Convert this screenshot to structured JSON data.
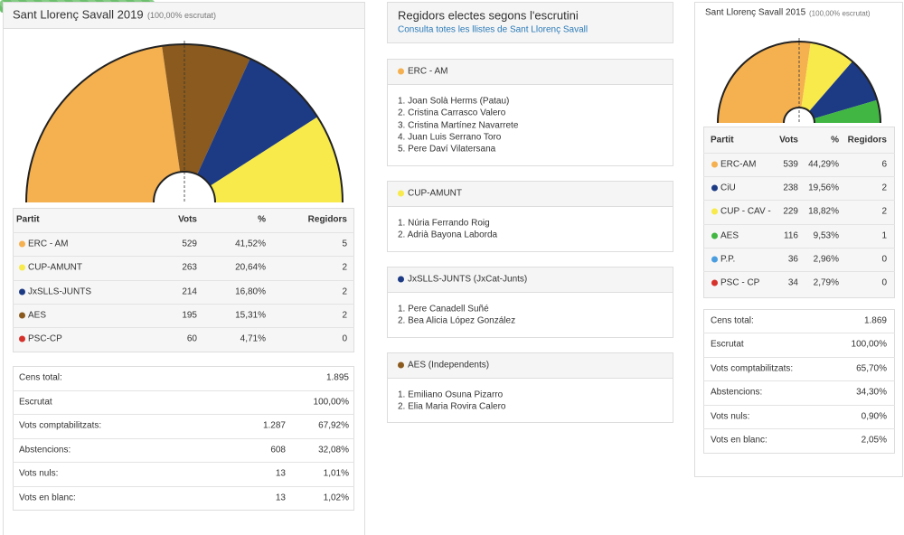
{
  "left": {
    "title": "Sant Llorenç Savall 2019",
    "status": "(100,00% escrutat)",
    "columns": [
      "Partit",
      "Vots",
      "%",
      "Regidors"
    ],
    "rows": [
      {
        "party": "ERC - AM",
        "color": "#f5b04f",
        "votes": 529,
        "share": "41,52%",
        "seats": 5
      },
      {
        "party": "CUP-AMUNT",
        "color": "#f7ea4a",
        "votes": 263,
        "share": "20,64%",
        "seats": 2
      },
      {
        "party": "JxSLLS-JUNTS",
        "color": "#1d3a84",
        "votes": 214,
        "share": "16,80%",
        "seats": 2
      },
      {
        "party": "AES",
        "color": "#8a5a1e",
        "votes": 195,
        "share": "15,31%",
        "seats": 2
      },
      {
        "party": "PSC-CP",
        "color": "#d6312b",
        "votes": 60,
        "share": "4,71%",
        "seats": 0
      }
    ],
    "summary": [
      {
        "label": "Cens total:",
        "values": [
          "1.895"
        ]
      },
      {
        "label": "Escrutat",
        "values": [
          "100,00%"
        ]
      },
      {
        "label": "Vots comptabilitzats:",
        "values": [
          "1.287",
          "67,92%"
        ]
      },
      {
        "label": "Abstencions:",
        "values": [
          "608",
          "32,08%"
        ]
      },
      {
        "label": "Vots nuls:",
        "values": [
          "13",
          "1,01%"
        ]
      },
      {
        "label": "Vots en blanc:",
        "values": [
          "13",
          "1,02%"
        ]
      }
    ]
  },
  "middle": {
    "title": "Regidors electes segons l'escrutini",
    "link": "Consulta totes les llistes de Sant Llorenç Savall",
    "lists": [
      {
        "party": "ERC - AM",
        "color": "#f5b04f",
        "members": [
          "1. Joan Solà Herms (Patau)",
          "2. Cristina Carrasco Valero",
          "3. Cristina Martínez Navarrete",
          "4. Juan Luis Serrano Toro",
          "5. Pere Daví Vilatersana"
        ]
      },
      {
        "party": "CUP-AMUNT",
        "color": "#f7ea4a",
        "members": [
          "1. Núria Ferrando Roig",
          "2. Adrià Bayona Laborda"
        ]
      },
      {
        "party": "JxSLLS-JUNTS (JxCat-Junts)",
        "color": "#1d3a84",
        "members": [
          "1. Pere Canadell Suñé",
          "2. Bea Alicia López González"
        ]
      },
      {
        "party": "AES (Independents)",
        "color": "#8a5a1e",
        "members": [
          "1. Emiliano Osuna Pizarro",
          "2. Elia Maria Rovira Calero"
        ]
      }
    ]
  },
  "right": {
    "title": "Sant Llorenç Savall 2015",
    "status": "(100,00% escrutat)",
    "columns": [
      "Partit",
      "Vots",
      "%",
      "Regidors"
    ],
    "rows": [
      {
        "party": "ERC-AM",
        "color": "#f5b04f",
        "votes": 539,
        "share": "44,29%",
        "seats": 6
      },
      {
        "party": "CiU",
        "color": "#1d3a84",
        "votes": 238,
        "share": "19,56%",
        "seats": 2
      },
      {
        "party": "CUP - CAV -",
        "color": "#f7ea4a",
        "votes": 229,
        "share": "18,82%",
        "seats": 2
      },
      {
        "party": "AES",
        "color": "#41b642",
        "votes": 116,
        "share": "9,53%",
        "seats": 1
      },
      {
        "party": "P.P.",
        "color": "#4a9ee0",
        "votes": 36,
        "share": "2,96%",
        "seats": 0
      },
      {
        "party": "PSC - CP",
        "color": "#d6312b",
        "votes": 34,
        "share": "2,79%",
        "seats": 0
      }
    ],
    "summary": [
      {
        "label": "Cens total:",
        "values": [
          "1.869"
        ]
      },
      {
        "label": "Escrutat",
        "values": [
          "100,00%"
        ]
      },
      {
        "label": "Vots comptabilitzats:",
        "values": [
          "65,70%"
        ]
      },
      {
        "label": "Abstencions:",
        "values": [
          "34,30%"
        ]
      },
      {
        "label": "Vots nuls:",
        "values": [
          "0,90%"
        ]
      },
      {
        "label": "Vots en blanc:",
        "values": [
          "2,05%"
        ]
      }
    ]
  }
}
